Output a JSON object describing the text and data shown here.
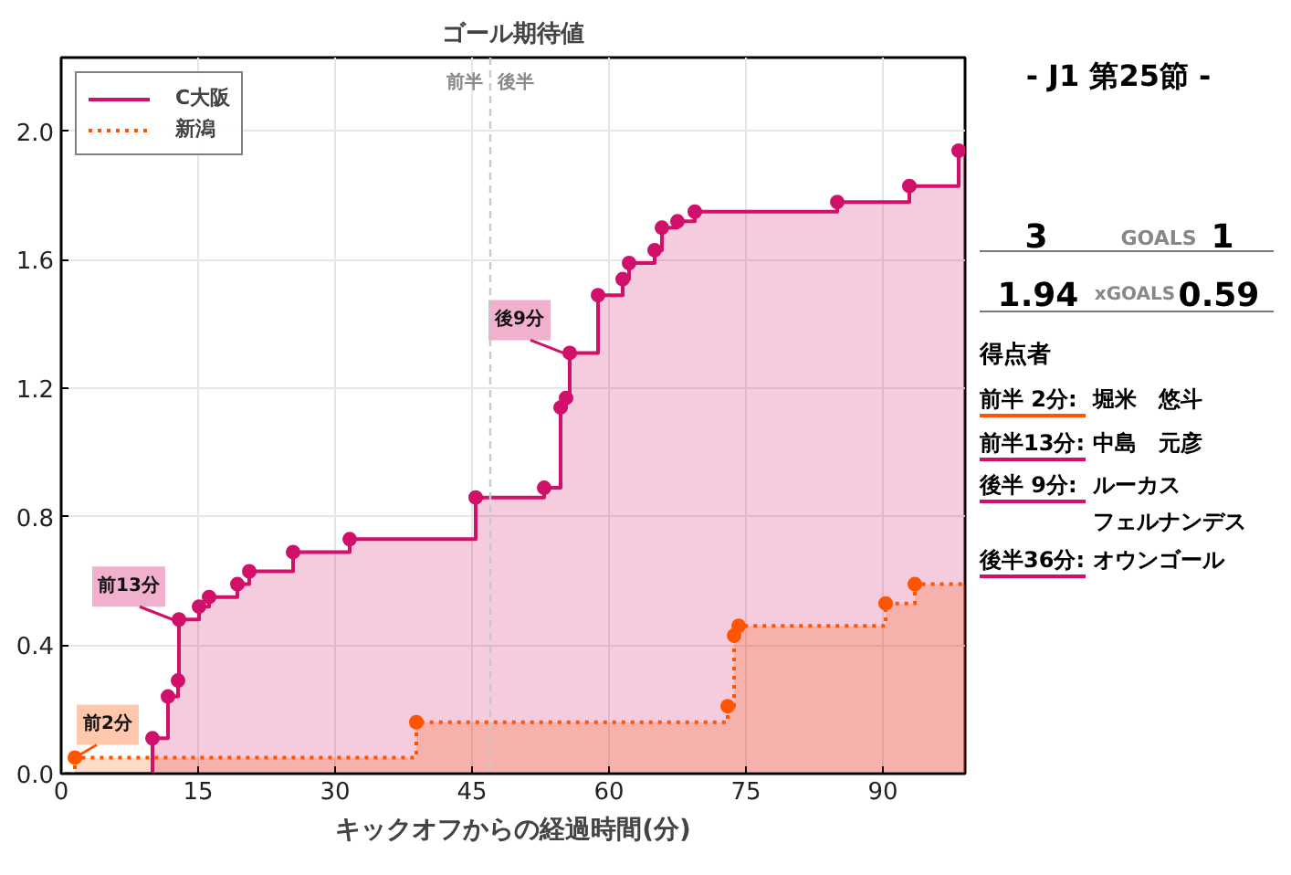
{
  "chart_data": [
    {
      "type": "step",
      "title": "ゴール期待値",
      "xlabel": "キックオフからの経過時間(分)",
      "xlim": [
        0,
        99
      ],
      "ylim": [
        0,
        2.23
      ],
      "xticks": [
        0,
        15,
        30,
        45,
        60,
        75,
        90
      ],
      "yticks": [
        {
          "value": 0,
          "label": "0.0"
        },
        0.4,
        0.8,
        1.2,
        1.6,
        {
          "value": 2,
          "label": "2.0"
        }
      ],
      "grid": true,
      "legend": "top left",
      "marker": "circle",
      "series": [
        {
          "name": "C大阪",
          "color": "#d0106a",
          "line_style": "solid",
          "x": [
            0,
            10.0,
            11.7,
            12.8,
            12.9,
            15.1,
            16.2,
            19.3,
            20.6,
            25.4,
            31.6,
            45.4,
            52.9,
            54.7,
            55.3,
            55.7,
            58.8,
            61.5,
            62.2,
            65.0,
            65.8,
            67.5,
            69.4,
            85.0,
            92.9,
            98.3,
            99
          ],
          "values": [
            0,
            0.11,
            0.24,
            0.29,
            0.48,
            0.52,
            0.55,
            0.59,
            0.63,
            0.69,
            0.73,
            0.86,
            0.89,
            1.14,
            1.17,
            1.31,
            1.49,
            1.54,
            1.59,
            1.63,
            1.7,
            1.72,
            1.75,
            1.78,
            1.83,
            1.94,
            1.94
          ]
        },
        {
          "name": "新潟",
          "color": "#ff5500",
          "line_style": "dotted",
          "x": [
            0,
            1.5,
            38.9,
            73.0,
            73.7,
            74.2,
            90.3,
            93.5,
            99
          ],
          "values": [
            0,
            0.05,
            0.16,
            0.21,
            0.43,
            0.46,
            0.53,
            0.59,
            0.59
          ]
        }
      ],
      "ref_lines": [
        {
          "axis": "x",
          "value": 47,
          "color": "#c8c8c8",
          "line_style": "dashed"
        }
      ],
      "annotations": [
        "前半",
        "後半",
        {
          "text": "前2分",
          "x": 1.5,
          "y": 0.05
        },
        {
          "text": "前13分",
          "x": 12.2,
          "y": 0.48
        },
        {
          "text": "後9分",
          "x": 55.0,
          "y": 1.31
        }
      ]
    },
    {
      "type": "other",
      "title": "- J1 第25節 -",
      "annotations": [
        "3",
        "GOALS",
        "1",
        "1.94",
        "xGOALS",
        "0.59",
        "得点者",
        "前半 2分:",
        "堀米　悠斗",
        "前半13分:",
        "中島　元彦",
        "後半 9分:",
        "ルーカス",
        "フェルナンデス",
        "後半36分:",
        "オウンゴール"
      ],
      "colors": [
        null,
        null,
        null,
        null,
        null,
        null,
        null,
        "#ff5500",
        null,
        "#d0106a",
        null,
        "#d0106a",
        null,
        null,
        "#d0106a",
        null
      ]
    }
  ]
}
